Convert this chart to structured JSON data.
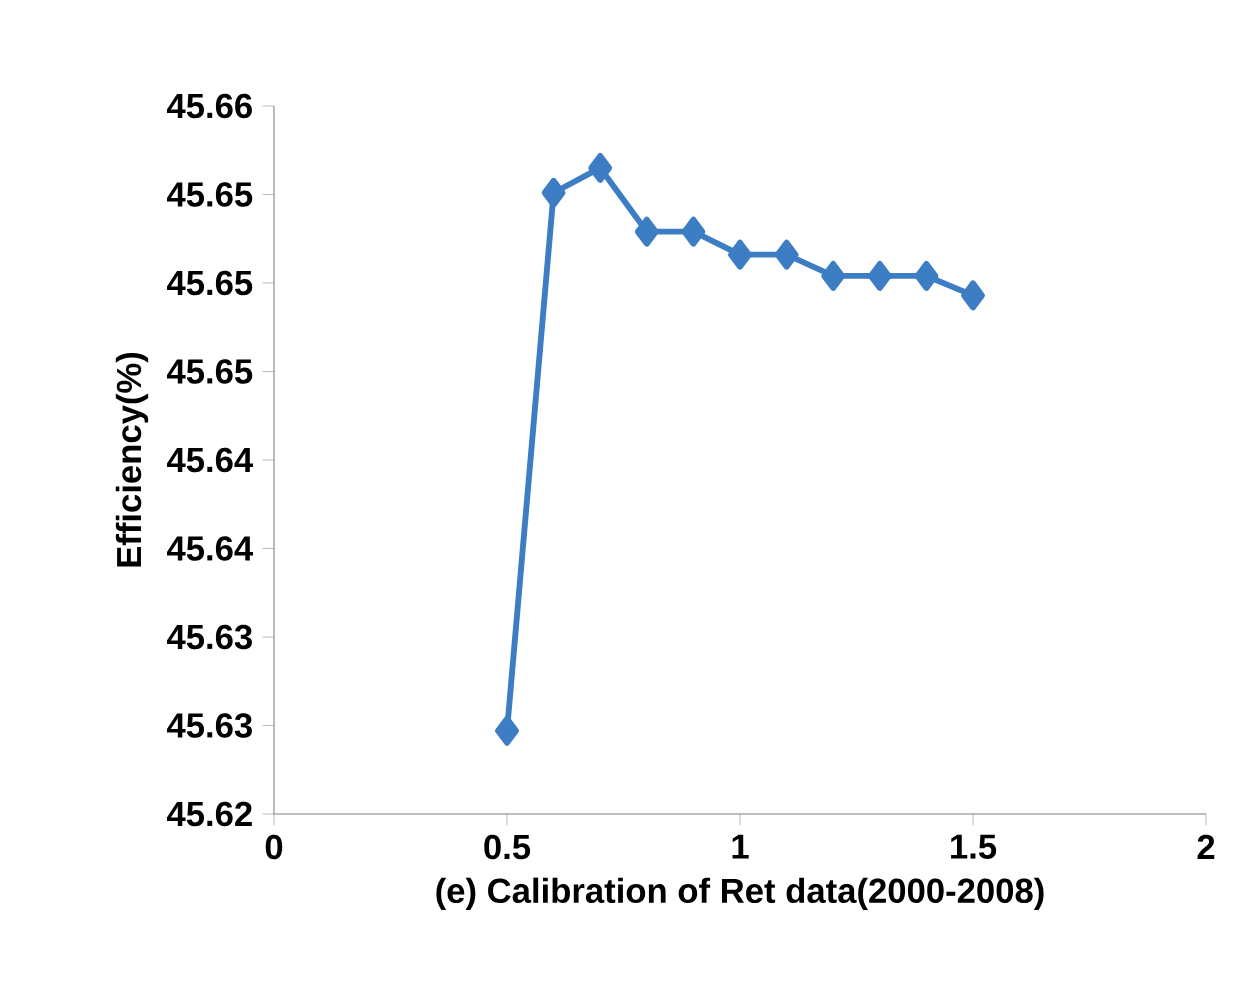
{
  "chart_data": {
    "type": "line",
    "xlabel": "(e) Calibration of Ret data(2000-2008)",
    "ylabel": "Efficiency(%)",
    "x": [
      0.5,
      0.6,
      0.7,
      0.8,
      0.9,
      1.0,
      1.1,
      1.2,
      1.3,
      1.4,
      1.5
    ],
    "series": [
      {
        "color": "#3c7dc4",
        "values": [
          45.6247,
          45.6551,
          45.6565,
          45.6529,
          45.6529,
          45.6516,
          45.6516,
          45.6504,
          45.6504,
          45.6504,
          45.6493
        ]
      }
    ],
    "xlim": [
      0,
      2
    ],
    "xticks": [
      0,
      0.5,
      1,
      1.5,
      2
    ],
    "ylim": [
      45.62,
      45.66
    ],
    "yticks": [
      45.62,
      {
        "value": 45.625,
        "label": "45.63"
      },
      45.63,
      {
        "value": 45.635,
        "label": "45.64"
      },
      45.64,
      {
        "value": 45.645,
        "label": "45.65"
      },
      45.65,
      {
        "value": 45.655,
        "label": "45.65"
      },
      45.66
    ],
    "grid": false,
    "legend": false,
    "marker": "diamond",
    "line_style": "solid"
  }
}
